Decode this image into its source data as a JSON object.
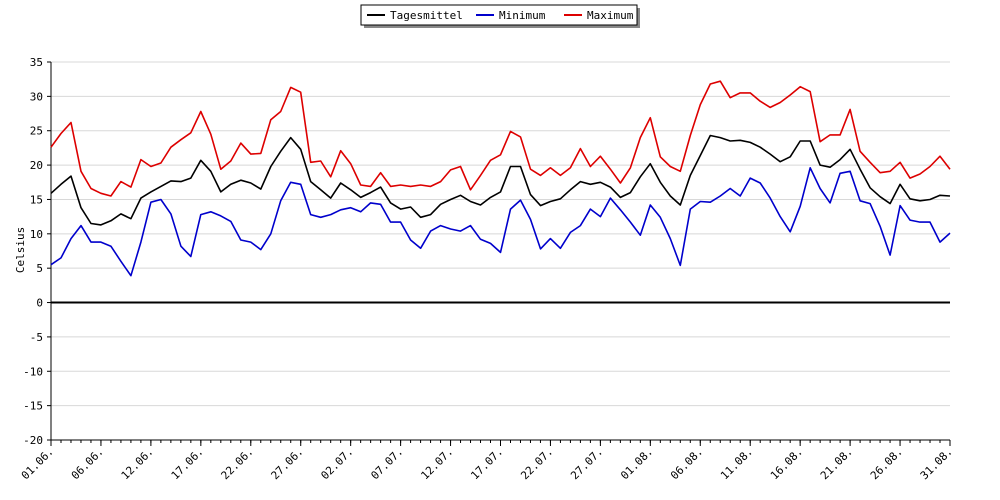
{
  "chart_data": {
    "type": "line",
    "ylabel": "Celsius",
    "ylim": [
      -20,
      35
    ],
    "yticks": [
      35,
      30,
      25,
      20,
      15,
      10,
      5,
      0,
      -5,
      -10,
      -15,
      -20
    ],
    "grid": true,
    "legend_position": "top-center",
    "x_tick_labels": [
      "01.06.",
      "06.06.",
      "12.06.",
      "17.06.",
      "22.06.",
      "27.06.",
      "02.07.",
      "07.07.",
      "12.07.",
      "17.07.",
      "22.07.",
      "27.07.",
      "01.08.",
      "06.08.",
      "11.08.",
      "16.08.",
      "21.08.",
      "26.08.",
      "31.08."
    ],
    "x_tick_index": [
      0,
      5,
      10,
      15,
      20,
      25,
      30,
      35,
      40,
      45,
      50,
      55,
      60,
      65,
      70,
      75,
      80,
      85,
      90
    ],
    "n_points": 91,
    "series": [
      {
        "name": "Tagesmittel",
        "color": "#000000",
        "values": [
          15.9,
          17.2,
          18.4,
          13.8,
          11.5,
          11.3,
          11.9,
          12.9,
          12.2,
          15.2,
          16.1,
          16.9,
          17.7,
          17.6,
          18.1,
          20.7,
          19.1,
          16.1,
          17.2,
          17.8,
          17.4,
          16.5,
          19.8,
          22.0,
          24.0,
          22.3,
          17.6,
          16.4,
          15.2,
          17.4,
          16.4,
          15.3,
          16.0,
          16.8,
          14.5,
          13.6,
          13.9,
          12.4,
          12.8,
          14.3,
          15.0,
          15.6,
          14.7,
          14.2,
          15.3,
          16.1,
          19.8,
          19.8,
          15.7,
          14.1,
          14.7,
          15.1,
          16.4,
          17.6,
          17.2,
          17.5,
          16.8,
          15.3,
          16.0,
          18.3,
          20.2,
          17.5,
          15.5,
          14.2,
          18.5,
          21.4,
          24.3,
          24.0,
          23.5,
          23.6,
          23.3,
          22.6,
          21.6,
          20.5,
          21.2,
          23.5,
          23.5,
          20.0,
          19.7,
          20.8,
          22.3,
          19.4,
          16.7,
          15.4,
          14.4,
          17.2,
          15.1,
          14.8,
          15.0,
          15.6,
          15.5
        ]
      },
      {
        "name": "Minimum",
        "color": "#0000cc",
        "values": [
          5.5,
          6.5,
          9.3,
          11.2,
          8.8,
          8.8,
          8.2,
          6.0,
          3.9,
          8.8,
          14.6,
          15.0,
          12.9,
          8.2,
          6.7,
          12.8,
          13.2,
          12.6,
          11.8,
          9.1,
          8.8,
          7.7,
          10.0,
          14.8,
          17.5,
          17.2,
          12.8,
          12.4,
          12.8,
          13.5,
          13.8,
          13.2,
          14.5,
          14.3,
          11.7,
          11.7,
          9.1,
          7.9,
          10.4,
          11.2,
          10.7,
          10.4,
          11.2,
          9.2,
          8.6,
          7.3,
          13.6,
          14.9,
          12.1,
          7.8,
          9.3,
          7.9,
          10.2,
          11.2,
          13.6,
          12.5,
          15.2,
          13.5,
          11.7,
          9.8,
          14.2,
          12.4,
          9.3,
          5.4,
          13.6,
          14.7,
          14.6,
          15.5,
          16.6,
          15.5,
          18.1,
          17.4,
          15.2,
          12.5,
          10.3,
          14.0,
          19.6,
          16.6,
          14.5,
          18.8,
          19.1,
          14.8,
          14.4,
          11.1,
          6.9,
          14.1,
          12.0,
          11.7,
          11.7,
          8.8,
          10.1
        ]
      },
      {
        "name": "Maximum",
        "color": "#dd0000",
        "values": [
          22.6,
          24.6,
          26.2,
          19.1,
          16.6,
          15.9,
          15.5,
          17.6,
          16.8,
          20.8,
          19.8,
          20.3,
          22.6,
          23.7,
          24.7,
          27.8,
          24.5,
          19.4,
          20.6,
          23.2,
          21.6,
          21.7,
          26.6,
          27.8,
          31.3,
          30.6,
          20.4,
          20.6,
          18.3,
          22.1,
          20.2,
          17.1,
          16.9,
          18.9,
          16.9,
          17.1,
          16.9,
          17.1,
          16.9,
          17.6,
          19.3,
          19.8,
          16.4,
          18.5,
          20.7,
          21.5,
          24.9,
          24.1,
          19.4,
          18.5,
          19.6,
          18.5,
          19.6,
          22.4,
          19.8,
          21.3,
          19.4,
          17.4,
          19.6,
          24.0,
          26.9,
          21.2,
          19.8,
          19.1,
          24.3,
          28.8,
          31.8,
          32.2,
          29.8,
          30.5,
          30.5,
          29.3,
          28.4,
          29.1,
          30.2,
          31.4,
          30.7,
          23.4,
          24.4,
          24.4,
          28.1,
          22.0,
          20.4,
          18.9,
          19.1,
          20.4,
          18.1,
          18.7,
          19.8,
          21.3,
          19.4
        ]
      }
    ]
  }
}
